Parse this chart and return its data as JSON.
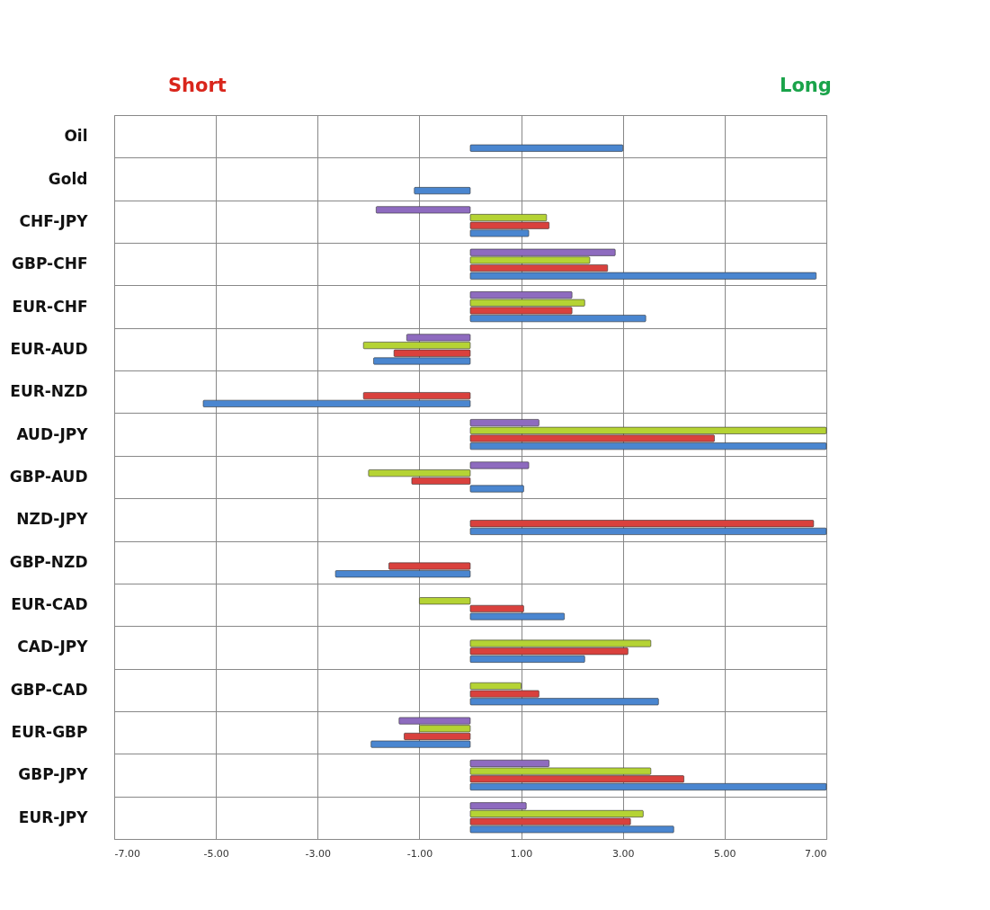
{
  "chart_data": {
    "type": "bar",
    "orientation": "horizontal",
    "categories": [
      "Oil",
      "Gold",
      "CHF-JPY",
      "GBP-CHF",
      "EUR-CHF",
      "EUR-AUD",
      "EUR-NZD",
      "AUD-JPY",
      "GBP-AUD",
      "NZD-JPY",
      "GBP-NZD",
      "EUR-CAD",
      "CAD-JPY",
      "GBP-CAD",
      "EUR-GBP",
      "GBP-JPY",
      "EUR-JPY"
    ],
    "series": [
      {
        "color": "#8e6bbf",
        "values": [
          null,
          null,
          -1.85,
          2.85,
          2.0,
          -1.25,
          null,
          1.35,
          1.15,
          null,
          null,
          null,
          null,
          null,
          -1.4,
          1.55,
          1.1
        ]
      },
      {
        "color": "#b5d334",
        "values": [
          null,
          null,
          1.5,
          2.35,
          2.25,
          -2.1,
          null,
          7,
          -2.0,
          null,
          null,
          -1.0,
          3.55,
          1.0,
          -1.0,
          3.55,
          3.4
        ]
      },
      {
        "color": "#d9413d",
        "values": [
          null,
          null,
          1.55,
          2.7,
          2.0,
          -1.5,
          -2.1,
          4.8,
          -1.15,
          6.75,
          -1.6,
          1.05,
          3.1,
          1.35,
          -1.3,
          4.2,
          3.15
        ]
      },
      {
        "color": "#4a86d0",
        "values": [
          3.0,
          -1.1,
          1.15,
          6.8,
          3.45,
          -1.9,
          -5.25,
          7,
          1.05,
          7,
          -2.65,
          1.85,
          2.25,
          3.7,
          -1.95,
          7,
          4.0
        ]
      }
    ],
    "xlim": [
      -7,
      7
    ],
    "xticks": [
      {
        "value": -7,
        "label": "-7.00"
      },
      {
        "value": -5,
        "label": "-5.00"
      },
      {
        "value": -3,
        "label": "-3.00"
      },
      {
        "value": -1,
        "label": "-1.00"
      },
      {
        "value": 1,
        "label": "1.00"
      },
      {
        "value": 3,
        "label": "3.00"
      },
      {
        "value": 5,
        "label": "5.00"
      },
      {
        "value": 7,
        "label": "7.00"
      }
    ],
    "annotations": [
      "Short",
      "Long"
    ],
    "grid": true,
    "legend": false
  }
}
